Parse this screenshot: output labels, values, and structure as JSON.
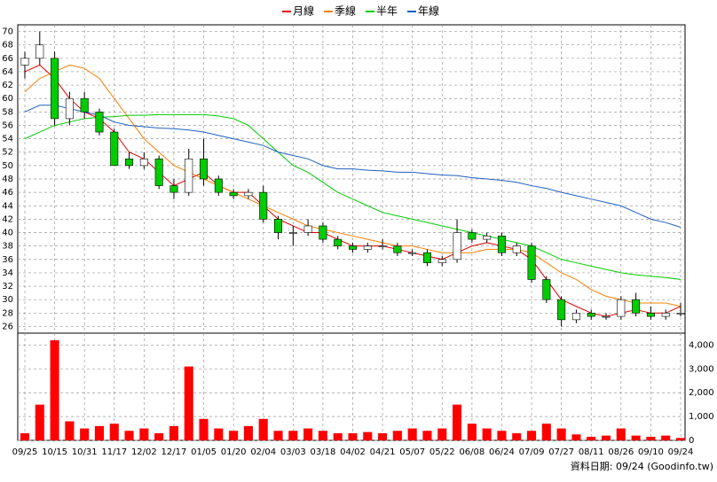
{
  "chart_data": [
    {
      "type": "candlestick",
      "legend": "top",
      "grid": true,
      "up_color": "#000000",
      "down_color": "#00cc00",
      "ylim": [
        25,
        71
      ],
      "yticks": [
        26,
        28,
        30,
        32,
        34,
        36,
        38,
        40,
        42,
        44,
        46,
        48,
        50,
        52,
        54,
        56,
        58,
        60,
        62,
        64,
        66,
        68,
        70
      ],
      "open": [
        65,
        66,
        66,
        57,
        60,
        58,
        55,
        51,
        50,
        51,
        47,
        46,
        51,
        48,
        46,
        45.5,
        46,
        42,
        40,
        40,
        41,
        39,
        38,
        37.5,
        38,
        38,
        37,
        37,
        35.5,
        36,
        40,
        39,
        39.5,
        37,
        38,
        33,
        30,
        27,
        28,
        27.5,
        27.5,
        30,
        28,
        27.5,
        28
      ],
      "high": [
        67,
        70,
        67,
        61,
        61,
        58.5,
        55.5,
        52,
        52,
        51.5,
        48,
        52.5,
        54,
        48.5,
        46.5,
        46.5,
        47,
        42.5,
        41,
        42,
        41.5,
        39.5,
        38.5,
        38.5,
        39,
        38.5,
        37.5,
        37.5,
        36.5,
        42,
        40.5,
        40,
        40,
        38.5,
        38.5,
        33.5,
        30.5,
        28.5,
        28.5,
        28,
        30.5,
        31,
        29,
        28.5,
        29.5
      ],
      "low": [
        63,
        65,
        56,
        56,
        57,
        54.5,
        50,
        49.5,
        49.5,
        46.5,
        45,
        45.5,
        47,
        45.5,
        45,
        45,
        41.5,
        39,
        38,
        39.5,
        38.5,
        37.5,
        37,
        37,
        37.5,
        36.5,
        36.5,
        35,
        35,
        35.5,
        38.5,
        38.5,
        36.5,
        36.5,
        32.5,
        29.5,
        26,
        26.5,
        27,
        27,
        27,
        27.5,
        27,
        27,
        27.5
      ],
      "close": [
        66,
        68,
        57,
        60,
        58,
        55,
        50,
        50,
        51,
        47,
        46,
        51,
        48,
        46,
        45.5,
        46,
        42,
        40,
        40,
        41,
        39,
        38,
        37.5,
        38,
        38,
        37,
        37,
        35.5,
        36,
        40,
        39,
        39.5,
        37,
        38,
        33,
        30,
        27,
        28,
        27.5,
        27.5,
        30,
        28,
        27.5,
        28,
        28
      ],
      "series": [
        {
          "name": "月線",
          "color": "#e00000",
          "values": [
            64,
            65,
            63,
            60,
            58,
            57,
            55,
            52,
            51,
            49,
            47,
            48,
            49,
            47,
            46,
            46,
            44,
            42,
            41,
            40,
            40,
            39,
            38,
            38,
            38,
            37.5,
            37,
            36.5,
            36,
            37,
            38,
            38.5,
            38,
            37.5,
            36,
            33,
            30,
            29,
            28,
            27.5,
            28,
            28.5,
            28,
            28,
            29
          ]
        },
        {
          "name": "季線",
          "color": "#ff7f00",
          "values": [
            61,
            63,
            64,
            65,
            64.5,
            63,
            60,
            57,
            54,
            52,
            50,
            49,
            48,
            47,
            46,
            45,
            44,
            43,
            42,
            41,
            40.5,
            40,
            39.5,
            39,
            38.5,
            38,
            38,
            37.5,
            37,
            37,
            37,
            37.5,
            37.5,
            37.5,
            37,
            35.5,
            34,
            33,
            31.5,
            30.5,
            30,
            29.5,
            29.5,
            29.5,
            29
          ]
        },
        {
          "name": "半年",
          "color": "#00cc00",
          "values": [
            54,
            55,
            56,
            56.5,
            57,
            57.2,
            57.3,
            57.5,
            57.5,
            57.6,
            57.6,
            57.6,
            57.6,
            57.4,
            57,
            56,
            54,
            52,
            50,
            49,
            47.5,
            46,
            45,
            44,
            43,
            42.5,
            42,
            41.5,
            41,
            40.5,
            40,
            39.5,
            39,
            38.5,
            38,
            37,
            36,
            35.5,
            35,
            34.5,
            34,
            33.7,
            33.5,
            33.3,
            33
          ]
        },
        {
          "name": "年線",
          "color": "#1f5fbf",
          "values": [
            58,
            59,
            59,
            58.5,
            58,
            57.5,
            56.5,
            56,
            55.8,
            55.6,
            55.5,
            55.3,
            55,
            54.5,
            54,
            53.5,
            53,
            52,
            51.5,
            51,
            50,
            49.5,
            49.5,
            49.3,
            49.2,
            49,
            49,
            48.8,
            48.6,
            48.5,
            48.2,
            48,
            47.8,
            47.5,
            47,
            46.6,
            46,
            45.5,
            45,
            44.5,
            44,
            43,
            42,
            41.5,
            40.8
          ]
        }
      ]
    },
    {
      "type": "bar",
      "color": "#ff0000",
      "grid": true,
      "ylim": [
        0,
        4500
      ],
      "yticks": [
        0,
        {
          "value": 1000,
          "label": "1,000"
        },
        {
          "value": 2000,
          "label": "2,000"
        },
        {
          "value": 3000,
          "label": "3,000"
        },
        {
          "value": 4000,
          "label": "4,000"
        }
      ],
      "categories": [
        "09/25",
        null,
        "10/15",
        null,
        "10/31",
        null,
        "11/17",
        null,
        "12/02",
        null,
        "12/17",
        null,
        "01/05",
        null,
        "01/20",
        null,
        "02/04",
        null,
        "03/03",
        null,
        "03/18",
        null,
        "04/02",
        null,
        "04/21",
        null,
        "05/07",
        null,
        "05/22",
        null,
        "06/08",
        null,
        "06/24",
        null,
        "07/09",
        null,
        "07/27",
        null,
        "08/11",
        null,
        "08/26",
        null,
        "09/10",
        null,
        "09/24"
      ],
      "values": [
        300,
        1500,
        4200,
        800,
        500,
        600,
        700,
        400,
        500,
        300,
        600,
        3100,
        900,
        500,
        400,
        600,
        900,
        400,
        400,
        500,
        400,
        300,
        300,
        350,
        300,
        400,
        500,
        400,
        500,
        1500,
        700,
        500,
        400,
        300,
        400,
        700,
        500,
        250,
        150,
        200,
        500,
        200,
        150,
        200,
        100
      ]
    },
    {
      "footer": "資料日期: 09/24 (Goodinfo.tw)"
    }
  ]
}
